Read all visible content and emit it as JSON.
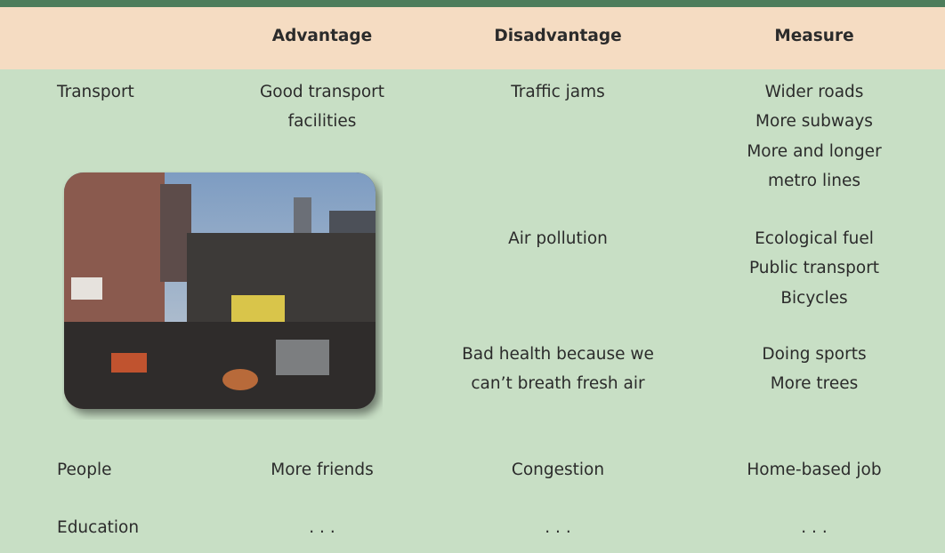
{
  "table": {
    "header": [
      "Advantage",
      "Disadvantage",
      "Measure"
    ],
    "rows": [
      {
        "topic": "Transport",
        "advantage": "Good transport facilities",
        "disadvantage": "Traffic jams",
        "measure": [
          "Wider roads",
          "More subways",
          "More and longer",
          "metro lines"
        ]
      },
      {
        "disadvantage": "Air pollution",
        "measure": [
          "Ecological fuel",
          "Public transport",
          "Bicycles"
        ]
      },
      {
        "disadvantage": "Bad health because we can’t breath fresh air",
        "measure": [
          "Doing sports",
          "More trees"
        ]
      },
      {
        "topic": "People",
        "advantage": "More friends",
        "disadvantage": "Congestion",
        "measure": [
          "Home-based job"
        ]
      },
      {
        "topic": "Education",
        "advantage": ". . .",
        "disadvantage": ". . .",
        "measure": [
          ". . ."
        ]
      }
    ]
  }
}
